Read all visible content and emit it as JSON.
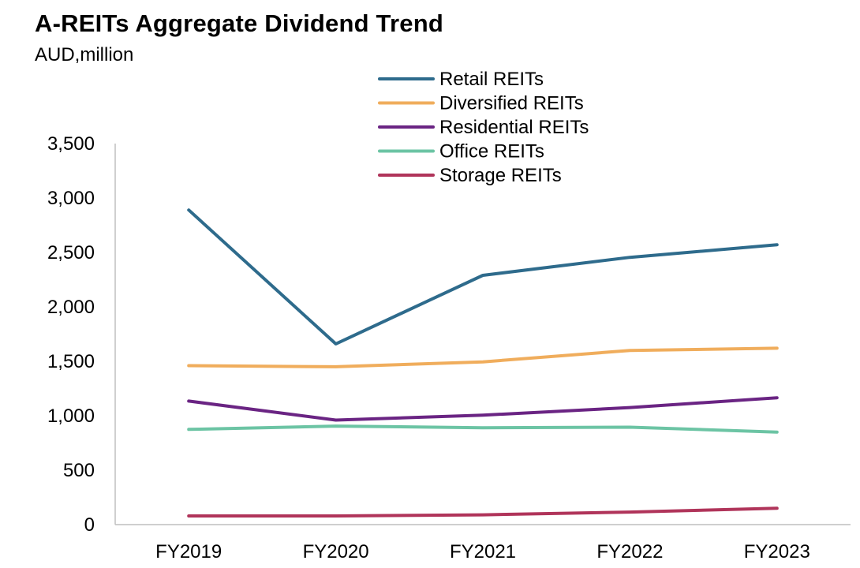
{
  "title": "A-REITs Aggregate Dividend Trend",
  "subtitle": "AUD,million",
  "chart_data": {
    "type": "line",
    "title": "A-REITs Aggregate Dividend Trend",
    "subtitle": "AUD,million",
    "xlabel": "",
    "ylabel": "",
    "categories": [
      "FY2019",
      "FY2020",
      "FY2021",
      "FY2022",
      "FY2023"
    ],
    "ylim": [
      0,
      3500
    ],
    "yticks": [
      0,
      500,
      1000,
      1500,
      2000,
      2500,
      3000,
      3500
    ],
    "ytick_labels": [
      "0",
      "500",
      "1,000",
      "1,500",
      "2,000",
      "2,500",
      "3,000",
      "3,500"
    ],
    "grid": false,
    "legend_position": "top-center",
    "series": [
      {
        "name": "Retail REITs",
        "color": "#2e6b8c",
        "values": [
          2890,
          1660,
          2290,
          2455,
          2570
        ]
      },
      {
        "name": "Diversified REITs",
        "color": "#f0ad5c",
        "values": [
          1460,
          1450,
          1495,
          1600,
          1620
        ]
      },
      {
        "name": "Residential REITs",
        "color": "#6a2483",
        "values": [
          1135,
          960,
          1005,
          1075,
          1165
        ]
      },
      {
        "name": "Office REITs",
        "color": "#6cc4a4",
        "values": [
          875,
          905,
          890,
          895,
          850
        ]
      },
      {
        "name": "Storage REITs",
        "color": "#b0345a",
        "values": [
          80,
          80,
          90,
          115,
          150
        ]
      }
    ]
  }
}
